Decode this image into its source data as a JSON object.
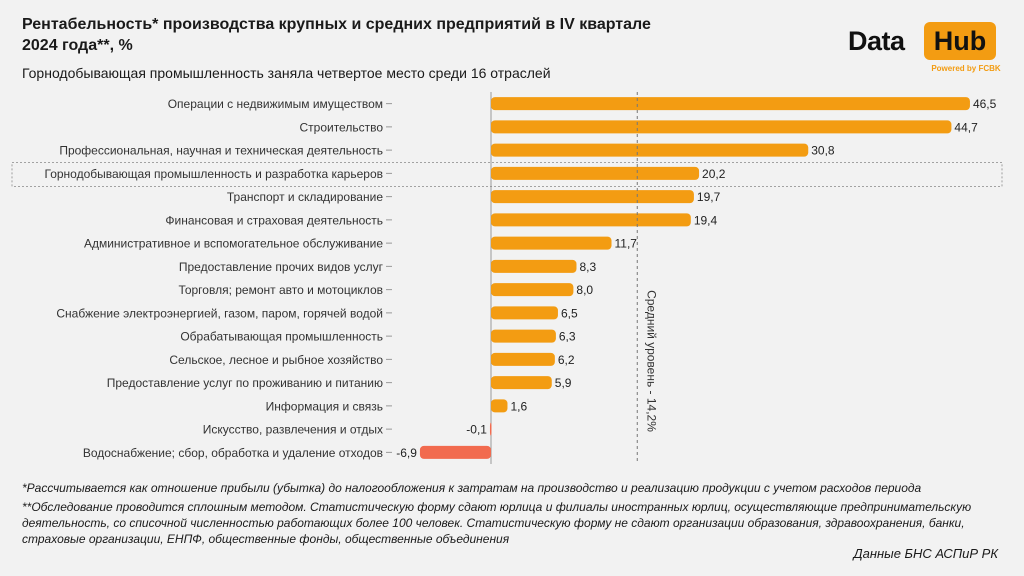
{
  "title": "Рентабельность* производства крупных и средних предприятий в IV квартале 2024 года**, %",
  "subtitle": "Горнодобывающая промышленность заняла четвертое место среди 16 отраслей",
  "logo": {
    "data": "Data",
    "hub": "Hub",
    "powered": "Powered by FCBK"
  },
  "footnote1": "*Рассчитывается как отношение прибыли (убытка) до налогообложения к затратам на производство и реализацию продукции с учетом расходов периода",
  "footnote2": "**Обследование проводится сплошным методом. Статистическую форму сдают юрлица и филиалы иностранных юрлиц, осуществляющие предпринимательскую деятельность, со списочной численностью работающих более 100 человек. Статистическую форму не сдают организации образования, здравоохранения, банки, страховые организации, ЕНПФ, общественные фонды, общественные объединения",
  "source": "Данные БНС АСПиР РК",
  "colors": {
    "positive": "#f39c12",
    "negative": "#f26b4f"
  },
  "chart_data": {
    "type": "bar",
    "orientation": "horizontal",
    "categories": [
      "Операции с недвижимым имуществом",
      "Строительство",
      "Профессиональная, научная и техническая деятельность",
      "Горнодобывающая промышленность и разработка карьеров",
      "Транспорт и складирование",
      "Финансовая и страховая деятельность",
      "Административное и вспомогательное обслуживание",
      "Предоставление прочих видов услуг",
      "Торговля; ремонт авто и мотоциклов",
      "Снабжение электроэнергией, газом, паром, горячей водой",
      "Обрабатывающая промышленность",
      "Сельское, лесное и рыбное хозяйство",
      "Предоставление услуг по проживанию и питанию",
      "Информация и связь",
      "Искусство, развлечения и отдых",
      "Водоснабжение; сбор, обработка и удаление отходов"
    ],
    "values": [
      46.5,
      44.7,
      30.8,
      20.2,
      19.7,
      19.4,
      11.7,
      8.3,
      8.0,
      6.5,
      6.3,
      6.2,
      5.9,
      1.6,
      -0.1,
      -6.9
    ],
    "value_labels": [
      "46,5",
      "44,7",
      "30,8",
      "20,2",
      "19,7",
      "19,4",
      "11,7",
      "8,3",
      "8,0",
      "6,5",
      "6,3",
      "6,2",
      "5,9",
      "1,6",
      "-0,1",
      "-6,9"
    ],
    "highlight_category": "Горнодобывающая промышленность и разработка карьеров",
    "reference_line": {
      "value": 14.2,
      "label": "Средний уровень - 14,2%"
    },
    "xlim": [
      -7,
      47
    ]
  }
}
